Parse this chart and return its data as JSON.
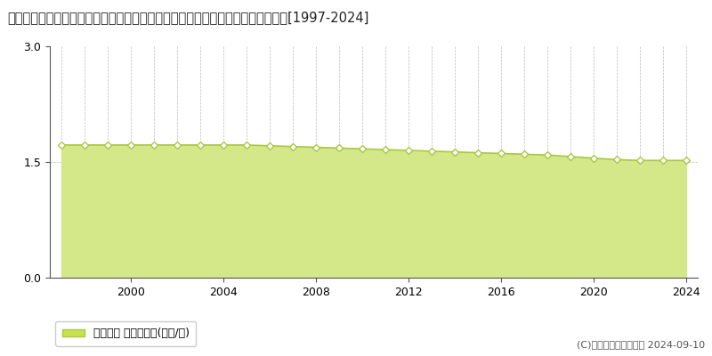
{
  "title": "宮崎県西諸県郡高原町大字西麓字原ノ出口２１０７番１外　地価公示　地価推移[1997-2024]",
  "years": [
    1997,
    1998,
    1999,
    2000,
    2001,
    2002,
    2003,
    2004,
    2005,
    2006,
    2007,
    2008,
    2009,
    2010,
    2011,
    2012,
    2013,
    2014,
    2015,
    2016,
    2017,
    2018,
    2019,
    2020,
    2021,
    2022,
    2023,
    2024
  ],
  "values": [
    1.72,
    1.72,
    1.72,
    1.72,
    1.72,
    1.72,
    1.72,
    1.72,
    1.72,
    1.71,
    1.7,
    1.69,
    1.68,
    1.67,
    1.66,
    1.65,
    1.64,
    1.63,
    1.62,
    1.61,
    1.6,
    1.59,
    1.57,
    1.55,
    1.53,
    1.52,
    1.52,
    1.52
  ],
  "line_color": "#a8c840",
  "fill_color": "#d4e88a",
  "marker_facecolor": "#ffffff",
  "marker_edgecolor": "#a8c840",
  "grid_color": "#aaaaaa",
  "background_color": "#ffffff",
  "legend_label": "地価公示 平均坊単価(万円/坊)",
  "legend_patch_color": "#c8e050",
  "legend_patch_edge": "#a8c840",
  "copyright_text": "(C)土地価格ドットコム 2024-09-10",
  "ylim": [
    0,
    3
  ],
  "yticks": [
    0,
    1.5,
    3
  ],
  "xticks": [
    2000,
    2004,
    2008,
    2012,
    2016,
    2020,
    2024
  ],
  "title_fontsize": 10.5,
  "tick_fontsize": 9,
  "legend_fontsize": 9,
  "copyright_fontsize": 8
}
